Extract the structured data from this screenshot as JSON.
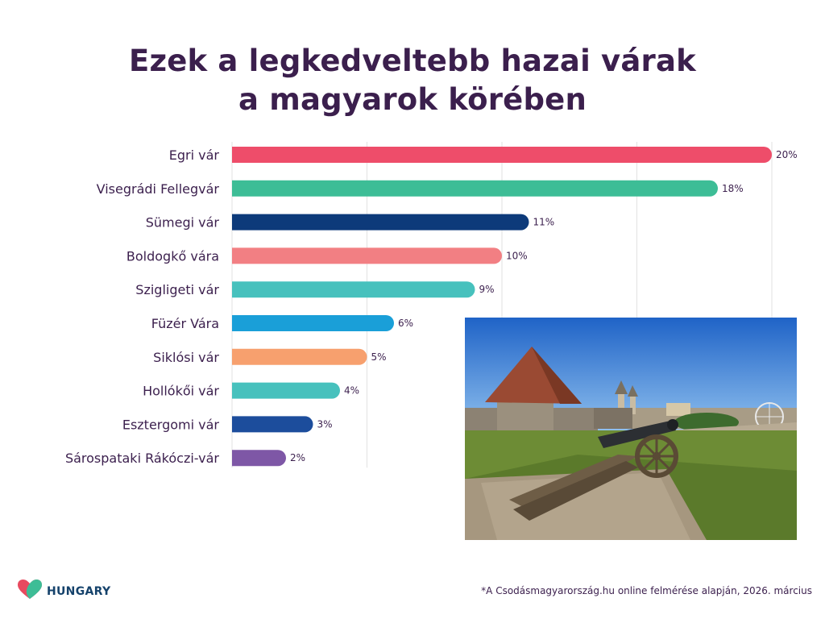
{
  "title_line1": "Ezek a legkedveltebb hazai várak",
  "title_line2": "a magyarok körében",
  "chart_data": {
    "type": "bar",
    "orientation": "horizontal",
    "categories": [
      "Egri vár",
      "Visegrádi Fellegvár",
      "Sümegi vár",
      "Boldogkő vára",
      "Szigligeti vár",
      "Füzér Vára",
      "Siklósi vár",
      "Hollókői vár",
      "Esztergomi vár",
      "Sárospataki Rákóczi-vár"
    ],
    "values": [
      20,
      18,
      11,
      10,
      9,
      6,
      5,
      4,
      3,
      2
    ],
    "value_labels": [
      "20%",
      "18%",
      "11%",
      "10%",
      "9%",
      "6%",
      "5%",
      "4%",
      "3%",
      "2%"
    ],
    "colors": [
      "#ee4d6a",
      "#3dbd96",
      "#0d3a7a",
      "#f27f83",
      "#47c1bd",
      "#1a9fd8",
      "#f7a06e",
      "#47c1bd",
      "#1c4d9c",
      "#7e57a6"
    ],
    "xlim": [
      0,
      20
    ],
    "grid": true
  },
  "logo": {
    "text": "HUNGARY",
    "icon": "heart-icon"
  },
  "footnote": "*A Csodásmagyarország.hu online felmérése alapján, 2026. március"
}
